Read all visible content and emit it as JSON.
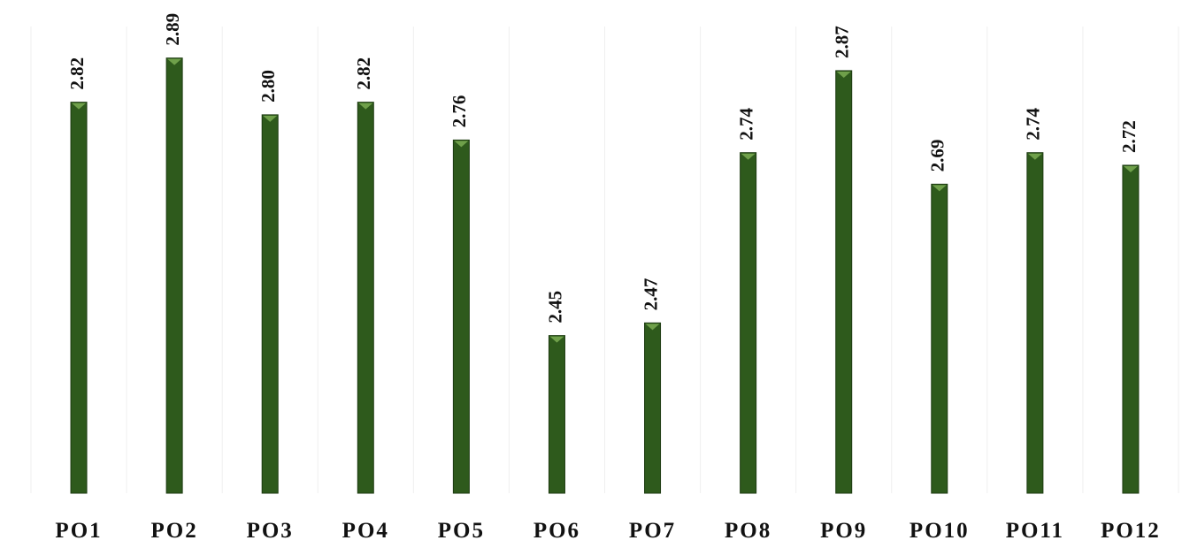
{
  "chart_data": {
    "type": "bar",
    "categories": [
      "PO1",
      "PO2",
      "PO3",
      "PO4",
      "PO5",
      "PO6",
      "PO7",
      "PO8",
      "PO9",
      "PO10",
      "PO11",
      "PO12"
    ],
    "values": [
      2.82,
      2.89,
      2.8,
      2.82,
      2.76,
      2.45,
      2.47,
      2.74,
      2.87,
      2.69,
      2.74,
      2.72
    ],
    "value_labels": [
      "2.82",
      "2.89",
      "2.80",
      "2.82",
      "2.76",
      "2.45",
      "2.47",
      "2.74",
      "2.87",
      "2.69",
      "2.74",
      "2.72"
    ],
    "title": "",
    "xlabel": "",
    "ylabel": "",
    "ylim": [
      2.2,
      2.94
    ],
    "grid": "vertical",
    "legend": "none",
    "bar_color": "#2e5a1c",
    "bar_edge_color": "#1c3a10",
    "bar_top_color": "#6fa04a",
    "grid_color": "#efefef",
    "background": "#ffffff"
  }
}
